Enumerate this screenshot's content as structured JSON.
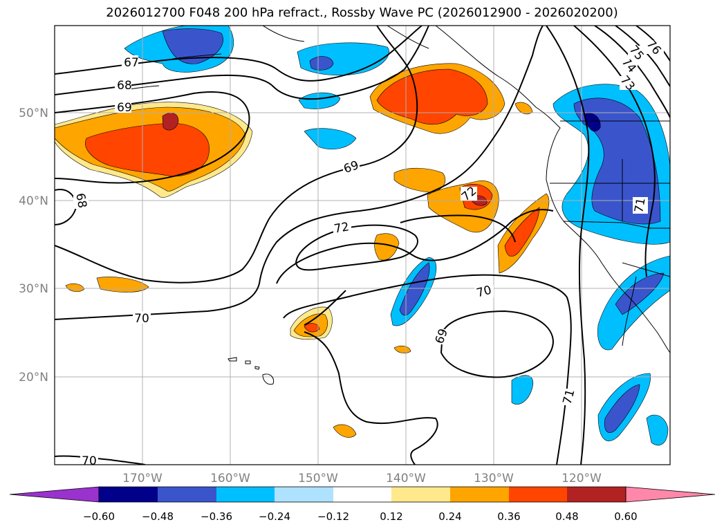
{
  "title": "2026012700 F048 200 hPa refract., Rossby Wave PC (2026012900 - 2026020200)",
  "map": {
    "lon_labels": [
      "170°W",
      "160°W",
      "150°W",
      "140°W",
      "130°W",
      "120°W"
    ],
    "lat_labels": [
      "50°N",
      "40°N",
      "30°N",
      "20°N"
    ],
    "gridline_color": "#b0b0b0",
    "tick_label_color": "#808080"
  },
  "contour_labels": {
    "l67": "67",
    "l68a": "68",
    "l69a": "69",
    "l69b": "69",
    "l68b": "68",
    "l72a": "72",
    "l72b": "72",
    "l70a": "70",
    "l70b": "70",
    "l70c": "70",
    "l69c": "69",
    "l71a": "71",
    "l71b": "71",
    "l73": "73",
    "l74": "74",
    "l75": "75",
    "l76": "76"
  },
  "colorbar": {
    "ticks": [
      "−0.60",
      "−0.48",
      "−0.36",
      "−0.24",
      "−0.12",
      "0.12",
      "0.24",
      "0.36",
      "0.48",
      "0.60"
    ],
    "colors": [
      "#9a32cd",
      "#00008b",
      "#3a55cc",
      "#00bfff",
      "#afe2ff",
      "#ffffff",
      "#ffe98c",
      "#ffa500",
      "#ff4500",
      "#b22222",
      "#ff88aa"
    ]
  }
}
